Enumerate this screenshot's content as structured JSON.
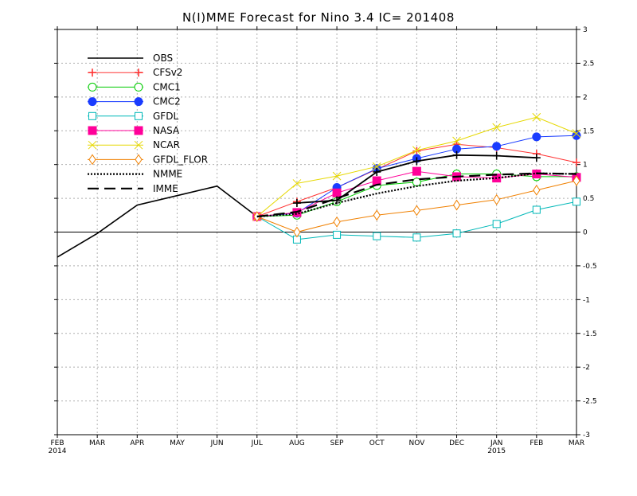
{
  "chart_data": {
    "type": "line",
    "title": "N(I)MME Forecast for Nino 3.4   IC= 201408",
    "xlabel": "",
    "ylabel": "",
    "x_ticks": [
      "FEB",
      "MAR",
      "APR",
      "MAY",
      "JUN",
      "JUL",
      "AUG",
      "SEP",
      "OCT",
      "NOV",
      "DEC",
      "JAN",
      "FEB",
      "MAR"
    ],
    "x_year_labels": [
      {
        "index": 0,
        "label": "2014"
      },
      {
        "index": 11,
        "label": "2015"
      }
    ],
    "y_ticks": [
      "3",
      "2.5",
      "2",
      "1.5",
      "1",
      "0.5",
      "0",
      "-0.5",
      "-1",
      "-1.5",
      "-2",
      "-2.5",
      "-3"
    ],
    "ylim": [
      -3,
      3
    ],
    "y_axis_side": "right",
    "grid": true,
    "zero_line": true,
    "legend_position": "top-left",
    "series": [
      {
        "name": "OBS",
        "color": "#000000",
        "dash": "solid",
        "marker": "none",
        "width": 1.6,
        "start": 0,
        "values": [
          -0.37,
          -0.02,
          0.4,
          0.54,
          0.68,
          0.23
        ]
      },
      {
        "name": "CFSv2",
        "color": "#ff3333",
        "dash": "solid",
        "marker": "plus",
        "width": 1,
        "start": 5,
        "values": [
          0.23,
          0.45,
          0.66,
          0.93,
          1.2,
          1.3,
          1.25,
          1.16,
          1.03
        ]
      },
      {
        "name": "CMC1",
        "color": "#00cc00",
        "dash": "solid",
        "marker": "open-circle",
        "width": 1,
        "start": 5,
        "values": [
          0.23,
          0.25,
          0.45,
          0.69,
          0.74,
          0.86,
          0.86,
          0.82,
          0.82
        ]
      },
      {
        "name": "CMC2",
        "color": "#1a3cff",
        "dash": "solid",
        "marker": "filled-circle",
        "width": 1,
        "start": 5,
        "values": [
          0.23,
          0.28,
          0.66,
          0.94,
          1.09,
          1.23,
          1.27,
          1.41,
          1.43
        ]
      },
      {
        "name": "GFDL",
        "color": "#00b8b8",
        "dash": "solid",
        "marker": "open-square",
        "width": 1,
        "start": 5,
        "values": [
          0.23,
          -0.11,
          -0.04,
          -0.06,
          -0.08,
          -0.02,
          0.12,
          0.33,
          0.45
        ]
      },
      {
        "name": "NASA",
        "color": "#ff0099",
        "dash": "solid",
        "marker": "filled-square",
        "width": 1,
        "start": 5,
        "values": [
          0.23,
          0.29,
          0.58,
          0.76,
          0.9,
          0.82,
          0.8,
          0.86,
          0.81
        ]
      },
      {
        "name": "NCAR",
        "color": "#e6d800",
        "dash": "solid",
        "marker": "x",
        "width": 1,
        "start": 5,
        "values": [
          0.23,
          0.72,
          0.83,
          0.97,
          1.21,
          1.35,
          1.55,
          1.7,
          1.46
        ]
      },
      {
        "name": "GFDL_FLOR",
        "color": "#f08000",
        "dash": "solid",
        "marker": "open-diamond",
        "width": 1,
        "start": 5,
        "values": [
          0.23,
          0.0,
          0.15,
          0.25,
          0.32,
          0.4,
          0.48,
          0.62,
          0.76
        ]
      },
      {
        "name": "NMME",
        "color": "#000000",
        "dash": "dotted",
        "marker": "none",
        "width": 2.2,
        "start": 5,
        "values": [
          0.23,
          0.27,
          0.43,
          0.57,
          0.68,
          0.76,
          0.8,
          0.87,
          0.86
        ]
      },
      {
        "name": "IMME",
        "color": "#000000",
        "dash": "long-dash",
        "marker": "none",
        "width": 2.2,
        "start": 5,
        "values": [
          0.23,
          0.3,
          0.5,
          0.7,
          0.78,
          0.82,
          0.85,
          0.87,
          0.86
        ]
      },
      {
        "name": "BLACK_FORECAST",
        "color": "#000000",
        "dash": "solid",
        "marker": "plus",
        "width": 1.8,
        "start": 6,
        "legend": false,
        "values": [
          0.43,
          0.47,
          0.89,
          1.05,
          1.14,
          1.13,
          1.1
        ]
      }
    ]
  }
}
